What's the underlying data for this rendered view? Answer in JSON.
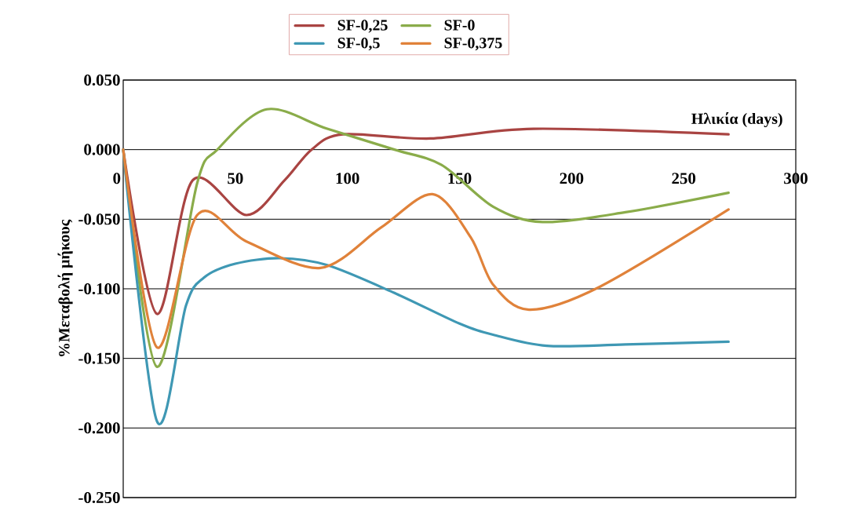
{
  "chart_data": {
    "type": "line",
    "xlabel": "Ηλικία (days)",
    "ylabel": "%Μεταβολή μήκους",
    "xlim": [
      0,
      300
    ],
    "xticks": [
      0,
      50,
      100,
      150,
      200,
      250,
      300
    ],
    "ylim": [
      -0.25,
      0.05
    ],
    "yticks": [
      {
        "value": -0.25,
        "label": "-0.250"
      },
      {
        "value": -0.2,
        "label": "-0.200"
      },
      {
        "value": -0.15,
        "label": "-0.150"
      },
      {
        "value": -0.1,
        "label": "-0.100"
      },
      {
        "value": -0.05,
        "label": "-0.050"
      },
      {
        "value": 0,
        "label": "0.000"
      },
      {
        "value": 0.05,
        "label": "0.050"
      }
    ],
    "grid": "y",
    "legend": "top",
    "marker": "none",
    "series": [
      {
        "name": "SF-0,25",
        "color": "#a94442",
        "x": [
          0,
          15,
          31,
          55,
          72,
          84,
          98,
          137,
          183,
          270
        ],
        "values": [
          0,
          -0.118,
          -0.022,
          -0.047,
          -0.022,
          0,
          0.011,
          0.008,
          0.015,
          0.011
        ]
      },
      {
        "name": "SF-0",
        "color": "#8aac4a",
        "x": [
          0,
          15,
          33,
          42,
          64,
          91,
          121,
          142,
          165,
          187,
          224,
          270
        ],
        "values": [
          0,
          -0.156,
          -0.024,
          0,
          0.029,
          0.015,
          0,
          -0.011,
          -0.041,
          -0.052,
          -0.045,
          -0.031
        ]
      },
      {
        "name": "SF-0,5",
        "color": "#3f98b4",
        "x": [
          0,
          15,
          28,
          36,
          50,
          70,
          91,
          121,
          150,
          165,
          189,
          224,
          270
        ],
        "values": [
          0,
          -0.195,
          -0.112,
          -0.092,
          -0.082,
          -0.078,
          -0.083,
          -0.103,
          -0.125,
          -0.133,
          -0.141,
          -0.14,
          -0.138
        ]
      },
      {
        "name": "SF-0,375",
        "color": "#e0823a",
        "x": [
          0,
          15,
          33,
          55,
          88,
          115,
          138,
          155,
          165,
          181,
          212,
          270
        ],
        "values": [
          0,
          -0.142,
          -0.047,
          -0.066,
          -0.085,
          -0.056,
          -0.032,
          -0.063,
          -0.097,
          -0.115,
          -0.099,
          -0.043
        ]
      }
    ]
  }
}
